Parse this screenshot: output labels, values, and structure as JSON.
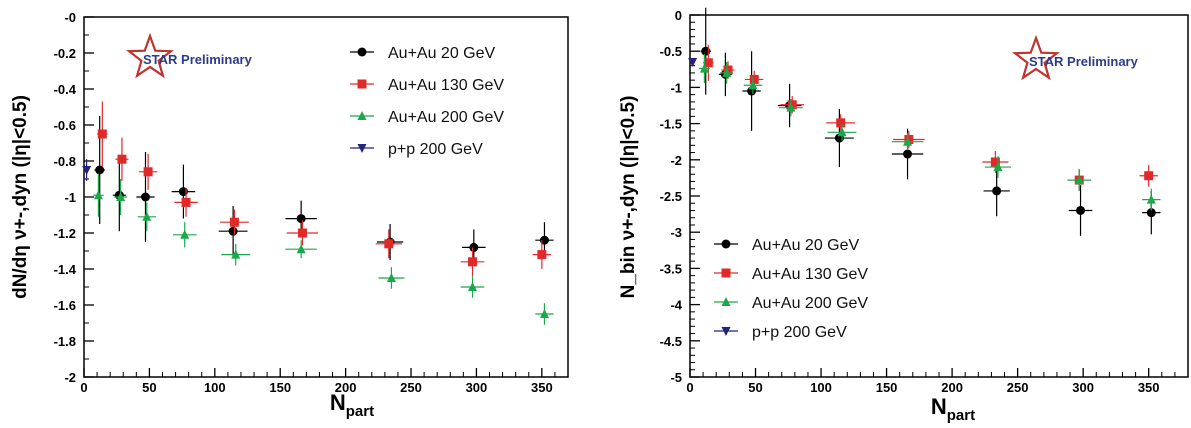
{
  "chart_data": [
    {
      "type": "scatter",
      "title": "",
      "xlabel": "N_part",
      "ylabel": "dN/dη ν+-,dyn (|η|<0.5)",
      "xlim": [
        0,
        370
      ],
      "ylim": [
        -2,
        0
      ],
      "xticks": [
        0,
        50,
        100,
        150,
        200,
        250,
        300,
        350
      ],
      "yticks": [
        -2,
        -1.8,
        -1.6,
        -1.4,
        -1.2,
        -1,
        -0.8,
        -0.6,
        -0.4,
        -0.2,
        0
      ],
      "ytick_labels": [
        "-2",
        "-1.8",
        "-1.6",
        "-1.4",
        "-1.2",
        "-1",
        "-0.8",
        "-0.6",
        "-0.4",
        "-0.2",
        "-0"
      ],
      "grid": false,
      "legend_position": "top-right",
      "annotation": "STAR Preliminary",
      "series": [
        {
          "name": "Au+Au 20 GeV",
          "marker": "circle",
          "color": "#000000",
          "points": [
            {
              "x": 12,
              "y": -0.85,
              "xerr": 4,
              "yerr": 0.3
            },
            {
              "x": 27,
              "y": -0.99,
              "xerr": 5,
              "yerr": 0.2
            },
            {
              "x": 47,
              "y": -1.0,
              "xerr": 7,
              "yerr": 0.25
            },
            {
              "x": 76,
              "y": -0.97,
              "xerr": 9,
              "yerr": 0.15
            },
            {
              "x": 114,
              "y": -1.19,
              "xerr": 11,
              "yerr": 0.14
            },
            {
              "x": 166,
              "y": -1.12,
              "xerr": 12,
              "yerr": 0.1
            },
            {
              "x": 234,
              "y": -1.25,
              "xerr": 10,
              "yerr": 0.1
            },
            {
              "x": 298,
              "y": -1.28,
              "xerr": 9,
              "yerr": 0.1
            },
            {
              "x": 352,
              "y": -1.24,
              "xerr": 7,
              "yerr": 0.1
            }
          ]
        },
        {
          "name": "Au+Au 130 GeV",
          "marker": "square",
          "color": "#e02a2a",
          "points": [
            {
              "x": 14,
              "y": -0.65,
              "xerr": 4,
              "yerr": 0.18
            },
            {
              "x": 29,
              "y": -0.79,
              "xerr": 5,
              "yerr": 0.12
            },
            {
              "x": 49,
              "y": -0.86,
              "xerr": 7,
              "yerr": 0.1
            },
            {
              "x": 78,
              "y": -1.03,
              "xerr": 9,
              "yerr": 0.08
            },
            {
              "x": 115,
              "y": -1.14,
              "xerr": 11,
              "yerr": 0.07
            },
            {
              "x": 167,
              "y": -1.2,
              "xerr": 12,
              "yerr": 0.07
            },
            {
              "x": 233,
              "y": -1.26,
              "xerr": 10,
              "yerr": 0.08
            },
            {
              "x": 297,
              "y": -1.36,
              "xerr": 9,
              "yerr": 0.08
            },
            {
              "x": 350,
              "y": -1.32,
              "xerr": 7,
              "yerr": 0.08
            }
          ]
        },
        {
          "name": "Au+Au 200 GeV",
          "marker": "triangle-up",
          "color": "#1aa84a",
          "points": [
            {
              "x": 11,
              "y": -0.99,
              "xerr": 4,
              "yerr": 0.12
            },
            {
              "x": 28,
              "y": -1.0,
              "xerr": 5,
              "yerr": 0.1
            },
            {
              "x": 48,
              "y": -1.11,
              "xerr": 7,
              "yerr": 0.08
            },
            {
              "x": 77,
              "y": -1.21,
              "xerr": 9,
              "yerr": 0.07
            },
            {
              "x": 116,
              "y": -1.32,
              "xerr": 11,
              "yerr": 0.06
            },
            {
              "x": 166,
              "y": -1.29,
              "xerr": 12,
              "yerr": 0.05
            },
            {
              "x": 235,
              "y": -1.45,
              "xerr": 10,
              "yerr": 0.06
            },
            {
              "x": 297,
              "y": -1.5,
              "xerr": 9,
              "yerr": 0.06
            },
            {
              "x": 352,
              "y": -1.65,
              "xerr": 7,
              "yerr": 0.06
            }
          ]
        },
        {
          "name": "p+p 200 GeV",
          "marker": "triangle-down",
          "color": "#23237e",
          "points": [
            {
              "x": 2,
              "y": -0.85,
              "xerr": 1,
              "yerr": 0.06
            }
          ]
        }
      ]
    },
    {
      "type": "scatter",
      "title": "",
      "xlabel": "N_part",
      "ylabel": "N_bin ν+-,dyn (|η|<0.5)",
      "xlim": [
        0,
        380
      ],
      "ylim": [
        -5,
        0
      ],
      "xticks": [
        0,
        50,
        100,
        150,
        200,
        250,
        300,
        350
      ],
      "yticks": [
        -5,
        -4.5,
        -4,
        -3.5,
        -3,
        -2.5,
        -2,
        -1.5,
        -1,
        -0.5,
        0
      ],
      "ytick_labels": [
        "-5",
        "-4.5",
        "-4",
        "-3.5",
        "-3",
        "-2.5",
        "-2",
        "-1.5",
        "-1",
        "-0.5",
        "0"
      ],
      "grid": false,
      "legend_position": "bottom-left",
      "annotation": "STAR Preliminary",
      "series": [
        {
          "name": "Au+Au 20 GeV",
          "marker": "circle",
          "color": "#000000",
          "points": [
            {
              "x": 12,
              "y": -0.5,
              "xerr": 4,
              "yerr": 0.6
            },
            {
              "x": 27,
              "y": -0.82,
              "xerr": 5,
              "yerr": 0.3
            },
            {
              "x": 47,
              "y": -1.05,
              "xerr": 7,
              "yerr": 0.55
            },
            {
              "x": 76,
              "y": -1.25,
              "xerr": 9,
              "yerr": 0.3
            },
            {
              "x": 114,
              "y": -1.7,
              "xerr": 11,
              "yerr": 0.4
            },
            {
              "x": 166,
              "y": -1.92,
              "xerr": 12,
              "yerr": 0.35
            },
            {
              "x": 234,
              "y": -2.43,
              "xerr": 10,
              "yerr": 0.35
            },
            {
              "x": 298,
              "y": -2.7,
              "xerr": 9,
              "yerr": 0.35
            },
            {
              "x": 352,
              "y": -2.73,
              "xerr": 7,
              "yerr": 0.3
            }
          ]
        },
        {
          "name": "Au+Au 130 GeV",
          "marker": "square",
          "color": "#e02a2a",
          "points": [
            {
              "x": 14,
              "y": -0.66,
              "xerr": 4,
              "yerr": 0.25
            },
            {
              "x": 29,
              "y": -0.76,
              "xerr": 5,
              "yerr": 0.12
            },
            {
              "x": 49,
              "y": -0.89,
              "xerr": 7,
              "yerr": 0.12
            },
            {
              "x": 78,
              "y": -1.24,
              "xerr": 9,
              "yerr": 0.12
            },
            {
              "x": 115,
              "y": -1.49,
              "xerr": 11,
              "yerr": 0.12
            },
            {
              "x": 167,
              "y": -1.72,
              "xerr": 12,
              "yerr": 0.12
            },
            {
              "x": 233,
              "y": -2.03,
              "xerr": 10,
              "yerr": 0.15
            },
            {
              "x": 297,
              "y": -2.28,
              "xerr": 9,
              "yerr": 0.15
            },
            {
              "x": 350,
              "y": -2.22,
              "xerr": 7,
              "yerr": 0.15
            }
          ]
        },
        {
          "name": "Au+Au 200 GeV",
          "marker": "triangle-up",
          "color": "#1aa84a",
          "points": [
            {
              "x": 11,
              "y": -0.74,
              "xerr": 4,
              "yerr": 0.2
            },
            {
              "x": 28,
              "y": -0.8,
              "xerr": 5,
              "yerr": 0.15
            },
            {
              "x": 48,
              "y": -0.97,
              "xerr": 7,
              "yerr": 0.12
            },
            {
              "x": 77,
              "y": -1.28,
              "xerr": 9,
              "yerr": 0.12
            },
            {
              "x": 116,
              "y": -1.62,
              "xerr": 11,
              "yerr": 0.12
            },
            {
              "x": 166,
              "y": -1.75,
              "xerr": 12,
              "yerr": 0.12
            },
            {
              "x": 235,
              "y": -2.1,
              "xerr": 10,
              "yerr": 0.15
            },
            {
              "x": 297,
              "y": -2.28,
              "xerr": 9,
              "yerr": 0.15
            },
            {
              "x": 352,
              "y": -2.55,
              "xerr": 7,
              "yerr": 0.15
            }
          ]
        },
        {
          "name": "p+p 200 GeV",
          "marker": "triangle-down",
          "color": "#23237e",
          "points": [
            {
              "x": 2,
              "y": -0.65,
              "xerr": 1,
              "yerr": 0.05
            }
          ]
        }
      ]
    }
  ]
}
